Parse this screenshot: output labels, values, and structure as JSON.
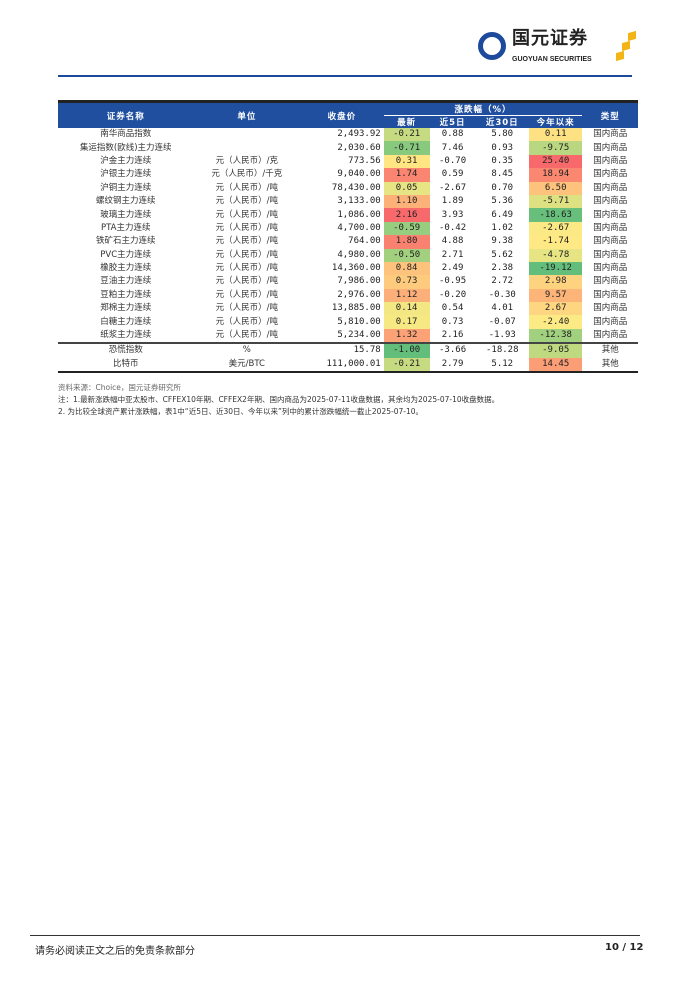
{
  "header": {
    "logo_cn": "国元证券",
    "logo_en": "GUOYUAN SECURITIES"
  },
  "table": {
    "headers": {
      "name": "证券名称",
      "unit": "单位",
      "close": "收盘价",
      "change_group": "涨跌幅（%）",
      "latest": "最新",
      "d5": "近5日",
      "d30": "近30日",
      "ytd": "今年以来",
      "type": "类型"
    },
    "rows": [
      {
        "name": "南华商品指数",
        "unit": "",
        "close": "2,493.92",
        "latest": "-0.21",
        "d5": "0.88",
        "d30": "5.80",
        "ytd": "0.11",
        "type": "国内商品"
      },
      {
        "name": "集运指数(欧线)主力连续",
        "unit": "",
        "close": "2,030.60",
        "latest": "-0.71",
        "d5": "7.46",
        "d30": "0.93",
        "ytd": "-9.75",
        "type": "国内商品"
      },
      {
        "name": "沪金主力连续",
        "unit": "元（人民币）/克",
        "close": "773.56",
        "latest": "0.31",
        "d5": "-0.70",
        "d30": "0.35",
        "ytd": "25.40",
        "type": "国内商品"
      },
      {
        "name": "沪银主力连续",
        "unit": "元（人民币）/千克",
        "close": "9,040.00",
        "latest": "1.74",
        "d5": "0.59",
        "d30": "8.45",
        "ytd": "18.94",
        "type": "国内商品"
      },
      {
        "name": "沪铜主力连续",
        "unit": "元（人民币）/吨",
        "close": "78,430.00",
        "latest": "0.05",
        "d5": "-2.67",
        "d30": "0.70",
        "ytd": "6.50",
        "type": "国内商品"
      },
      {
        "name": "螺纹钢主力连续",
        "unit": "元（人民币）/吨",
        "close": "3,133.00",
        "latest": "1.10",
        "d5": "1.89",
        "d30": "5.36",
        "ytd": "-5.71",
        "type": "国内商品"
      },
      {
        "name": "玻璃主力连续",
        "unit": "元（人民币）/吨",
        "close": "1,086.00",
        "latest": "2.16",
        "d5": "3.93",
        "d30": "6.49",
        "ytd": "-18.63",
        "type": "国内商品"
      },
      {
        "name": "PTA主力连续",
        "unit": "元（人民币）/吨",
        "close": "4,700.00",
        "latest": "-0.59",
        "d5": "-0.42",
        "d30": "1.02",
        "ytd": "-2.67",
        "type": "国内商品"
      },
      {
        "name": "铁矿石主力连续",
        "unit": "元（人民币）/吨",
        "close": "764.00",
        "latest": "1.80",
        "d5": "4.88",
        "d30": "9.38",
        "ytd": "-1.74",
        "type": "国内商品"
      },
      {
        "name": "PVC主力连续",
        "unit": "元（人民币）/吨",
        "close": "4,980.00",
        "latest": "-0.50",
        "d5": "2.71",
        "d30": "5.62",
        "ytd": "-4.78",
        "type": "国内商品"
      },
      {
        "name": "橡胶主力连续",
        "unit": "元（人民币）/吨",
        "close": "14,360.00",
        "latest": "0.84",
        "d5": "2.49",
        "d30": "2.38",
        "ytd": "-19.12",
        "type": "国内商品"
      },
      {
        "name": "豆油主力连续",
        "unit": "元（人民币）/吨",
        "close": "7,986.00",
        "latest": "0.73",
        "d5": "-0.95",
        "d30": "2.72",
        "ytd": "2.98",
        "type": "国内商品"
      },
      {
        "name": "豆粕主力连续",
        "unit": "元（人民币）/吨",
        "close": "2,976.00",
        "latest": "1.12",
        "d5": "-0.20",
        "d30": "-0.30",
        "ytd": "9.57",
        "type": "国内商品"
      },
      {
        "name": "郑棉主力连续",
        "unit": "元（人民币）/吨",
        "close": "13,885.00",
        "latest": "0.14",
        "d5": "0.54",
        "d30": "4.01",
        "ytd": "2.67",
        "type": "国内商品"
      },
      {
        "name": "白糖主力连续",
        "unit": "元（人民币）/吨",
        "close": "5,810.00",
        "latest": "0.17",
        "d5": "0.73",
        "d30": "-0.07",
        "ytd": "-2.40",
        "type": "国内商品"
      },
      {
        "name": "纸浆主力连续",
        "unit": "元（人民币）/吨",
        "close": "5,234.00",
        "latest": "1.32",
        "d5": "2.16",
        "d30": "-1.93",
        "ytd": "-12.38",
        "type": "国内商品"
      },
      {
        "name": "恐慌指数",
        "unit": "%",
        "close": "15.78",
        "latest": "-1.00",
        "d5": "-3.66",
        "d30": "-18.28",
        "ytd": "-9.05",
        "type": "其他"
      },
      {
        "name": "比特币",
        "unit": "美元/BTC",
        "close": "111,000.01",
        "latest": "-0.21",
        "d5": "2.79",
        "d30": "5.12",
        "ytd": "14.45",
        "type": "其他"
      }
    ]
  },
  "colors": {
    "low": "#63be7b",
    "mid": "#ffeb84",
    "high": "#f8696b",
    "header": "#1f4f9e"
  },
  "notes": [
    "资料来源：Choice，国元证券研究所",
    "注：1.最新涨跌幅中亚太股市、CFFEX10年期、CFFEX2年期、国内商品为2025-07-11收盘数据，其余均为2025-07-10收盘数据。",
    "2. 为比较全球资产累计涨跌幅，表1中“近5日、近30日、今年以来”列中的累计涨跌幅统一截止2025-07-10。"
  ],
  "footer": {
    "disclaimer": "请务必阅读正文之后的免责条款部分",
    "page": "10 / 12"
  }
}
